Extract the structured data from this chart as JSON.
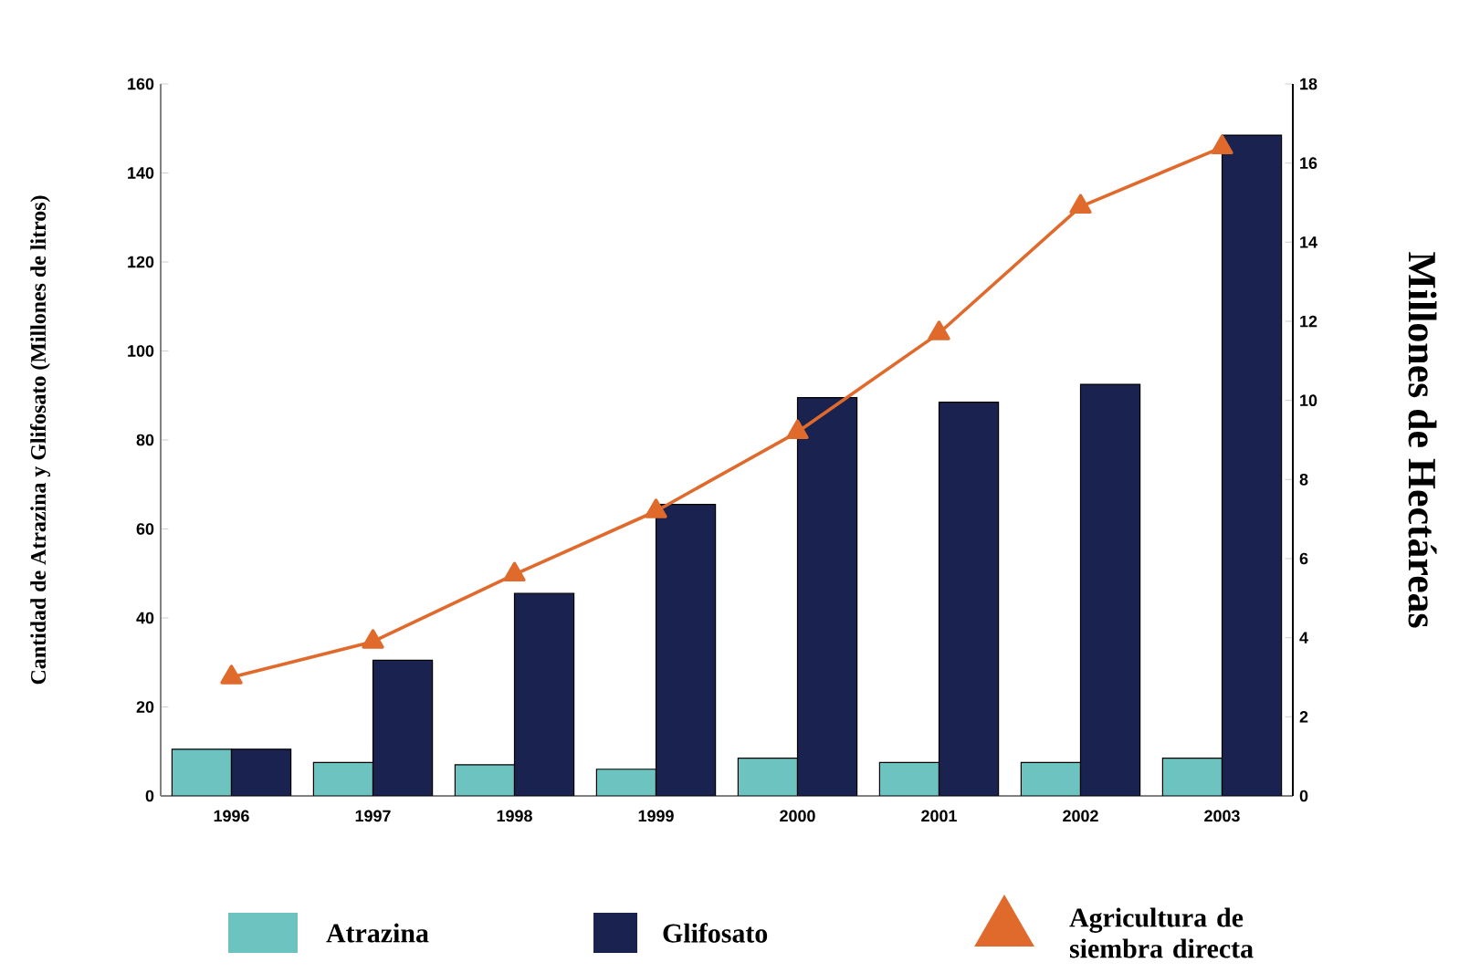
{
  "chart_data": {
    "type": "bar",
    "ylabel": "Cantidad de Atrazina y Glifosato (Millones de litros)",
    "y2label": "Millones de Hectáreas",
    "categories": [
      "1996",
      "1997",
      "1998",
      "1999",
      "2000",
      "2001",
      "2002",
      "2003"
    ],
    "series": [
      {
        "name": "Atrazina",
        "color": "#6cc3c0",
        "values": [
          10.5,
          7.5,
          7,
          6,
          8.5,
          7.5,
          7.5,
          8.5
        ]
      },
      {
        "name": "Glifosato",
        "color": "#1a2350",
        "values": [
          10.5,
          30.5,
          45.5,
          65.5,
          89.5,
          88.5,
          92.5,
          148.5
        ]
      },
      {
        "name": "Agricultura de siembra directa",
        "type": "line",
        "axis": "y2",
        "color": "#e06a2c",
        "marker": "triangle",
        "values": [
          3.0,
          3.9,
          5.6,
          7.2,
          9.2,
          11.7,
          14.9,
          16.4
        ]
      }
    ],
    "ylim": [
      0,
      160
    ],
    "yticks": [
      0,
      20,
      40,
      60,
      80,
      100,
      120,
      140,
      160
    ],
    "y2lim": [
      0,
      18
    ],
    "y2ticks": [
      0,
      2,
      4,
      6,
      8,
      10,
      12,
      14,
      16,
      18
    ],
    "grid": false,
    "legend": "bottom"
  }
}
